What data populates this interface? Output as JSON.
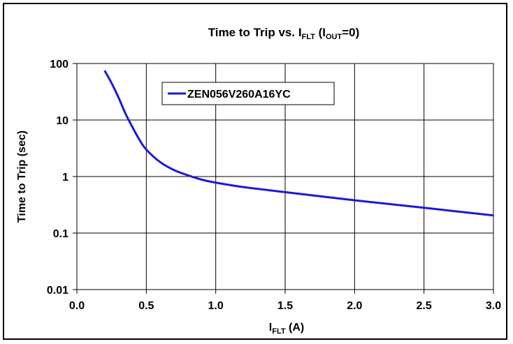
{
  "chart_data": {
    "type": "line",
    "title": {
      "prefix": "Time to Trip vs. I",
      "sub1": "FLT",
      "mid": " (I",
      "sub2": "OUT",
      "suffix": "=0)"
    },
    "xlabel": {
      "main": "I",
      "sub": "FLT",
      "suffix": " (A)"
    },
    "ylabel": "Time to Trip (sec)",
    "xlim": [
      0.0,
      3.0
    ],
    "ylim": [
      0.01,
      100
    ],
    "y_scale": "log",
    "x_ticks": [
      "0.0",
      "0.5",
      "1.0",
      "1.5",
      "2.0",
      "2.5",
      "3.0"
    ],
    "y_ticks": [
      "100",
      "10",
      "1",
      "0.1",
      "0.01"
    ],
    "grid": true,
    "legend_position": "top-center",
    "series": [
      {
        "name": "ZEN056V260A16YC",
        "color": "#1a1ad6",
        "x": [
          0.2,
          0.25,
          0.3,
          0.35,
          0.4,
          0.45,
          0.5,
          0.6,
          0.7,
          0.8,
          0.9,
          1.0,
          1.2,
          1.5,
          2.0,
          2.5,
          3.0
        ],
        "y": [
          75,
          45,
          25,
          13,
          7.5,
          4.5,
          3.0,
          1.8,
          1.3,
          1.05,
          0.88,
          0.78,
          0.65,
          0.53,
          0.38,
          0.28,
          0.205
        ]
      }
    ]
  }
}
